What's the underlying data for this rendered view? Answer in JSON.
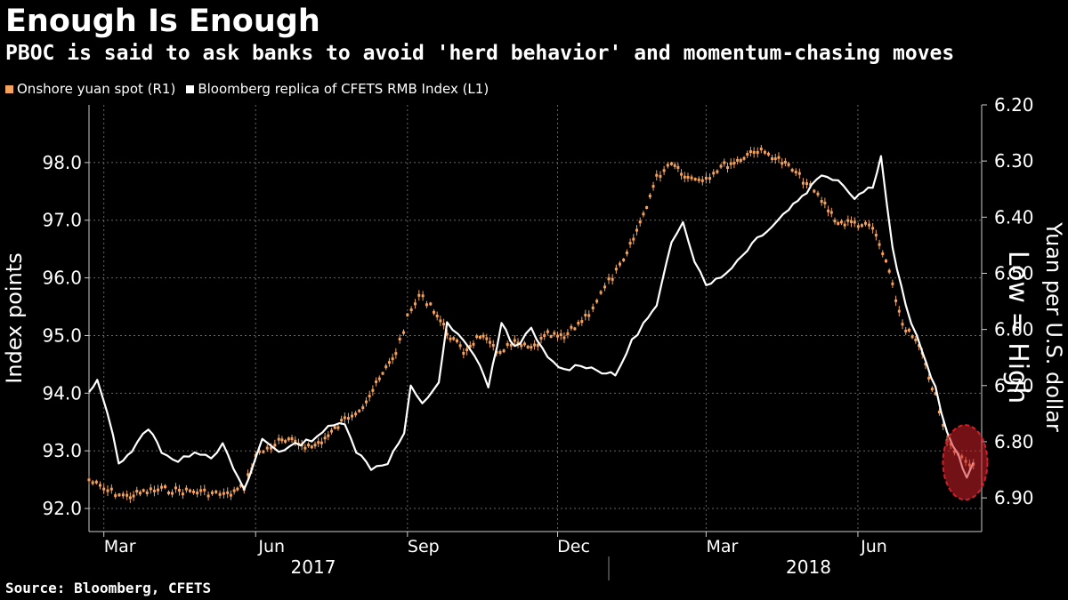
{
  "header": {
    "title": "Enough Is Enough",
    "subtitle": "PBOC is said to ask banks to avoid 'herd behavior' and momentum-chasing moves"
  },
  "footer": {
    "source": "Source: Bloomberg, CFETS"
  },
  "colors": {
    "yuan": "#f5a25d",
    "cfets": "#ffffff",
    "grid": "#666666",
    "highlight": "#d0202a"
  },
  "chart_data": {
    "type": "line",
    "title": "Enough Is Enough",
    "subtitle": "PBOC is said to ask banks to avoid 'herd behavior' and momentum-chasing moves",
    "ylabel_left": "Index points",
    "ylabel_right": "Yuan per U.S. dollar",
    "right_axis_note": "Low = High",
    "yleft_ticks": [
      "98.0",
      "97.0",
      "96.0",
      "95.0",
      "94.0",
      "93.0",
      "92.0"
    ],
    "yleft_range": [
      91.6,
      99.0
    ],
    "yright_ticks": [
      "6.20",
      "6.30",
      "6.40",
      "6.50",
      "6.60",
      "6.70",
      "6.80",
      "6.90"
    ],
    "yright_range": [
      6.2,
      6.96
    ],
    "yright_inverted": true,
    "x_ticks": [
      "Mar",
      "Jun",
      "Sep",
      "Dec",
      "Mar",
      "Jun"
    ],
    "x_years": [
      "2017",
      "2018"
    ],
    "x_range": [
      "2017-02-20",
      "2018-08-15"
    ],
    "series": [
      {
        "name": "Onshore yuan spot (R1)",
        "axis": "right",
        "style": "candlestick",
        "points": [
          [
            "2017-02-20",
            6.868
          ],
          [
            "2017-03-01",
            6.885
          ],
          [
            "2017-03-15",
            6.898
          ],
          [
            "2017-03-25",
            6.89
          ],
          [
            "2017-04-05",
            6.885
          ],
          [
            "2017-04-20",
            6.888
          ],
          [
            "2017-05-01",
            6.89
          ],
          [
            "2017-05-15",
            6.895
          ],
          [
            "2017-05-25",
            6.88
          ],
          [
            "2017-06-01",
            6.825
          ],
          [
            "2017-06-15",
            6.8
          ],
          [
            "2017-06-25",
            6.8
          ],
          [
            "2017-07-05",
            6.81
          ],
          [
            "2017-07-15",
            6.79
          ],
          [
            "2017-07-25",
            6.76
          ],
          [
            "2017-08-05",
            6.735
          ],
          [
            "2017-08-15",
            6.69
          ],
          [
            "2017-08-25",
            6.64
          ],
          [
            "2017-09-01",
            6.58
          ],
          [
            "2017-09-08",
            6.54
          ],
          [
            "2017-09-15",
            6.555
          ],
          [
            "2017-09-25",
            6.605
          ],
          [
            "2017-10-05",
            6.64
          ],
          [
            "2017-10-15",
            6.61
          ],
          [
            "2017-10-25",
            6.64
          ],
          [
            "2017-11-05",
            6.625
          ],
          [
            "2017-11-15",
            6.635
          ],
          [
            "2017-11-25",
            6.61
          ],
          [
            "2017-12-05",
            6.615
          ],
          [
            "2017-12-20",
            6.57
          ],
          [
            "2018-01-01",
            6.515
          ],
          [
            "2018-01-10",
            6.48
          ],
          [
            "2018-01-20",
            6.41
          ],
          [
            "2018-01-30",
            6.33
          ],
          [
            "2018-02-08",
            6.3
          ],
          [
            "2018-02-18",
            6.33
          ],
          [
            "2018-03-01",
            6.33
          ],
          [
            "2018-03-10",
            6.31
          ],
          [
            "2018-03-20",
            6.3
          ],
          [
            "2018-03-30",
            6.28
          ],
          [
            "2018-04-10",
            6.29
          ],
          [
            "2018-04-20",
            6.31
          ],
          [
            "2018-05-01",
            6.34
          ],
          [
            "2018-05-10",
            6.37
          ],
          [
            "2018-05-20",
            6.41
          ],
          [
            "2018-05-30",
            6.41
          ],
          [
            "2018-06-10",
            6.42
          ],
          [
            "2018-06-18",
            6.48
          ],
          [
            "2018-06-28",
            6.59
          ],
          [
            "2018-07-08",
            6.63
          ],
          [
            "2018-07-18",
            6.72
          ],
          [
            "2018-07-25",
            6.8
          ],
          [
            "2018-08-03",
            6.83
          ],
          [
            "2018-08-10",
            6.84
          ]
        ]
      },
      {
        "name": "Bloomberg replica of CFETS RMB Index (L1)",
        "axis": "left",
        "style": "line",
        "points": [
          [
            "2017-02-20",
            94.0
          ],
          [
            "2017-02-25",
            94.2
          ],
          [
            "2017-03-03",
            93.7
          ],
          [
            "2017-03-10",
            92.8
          ],
          [
            "2017-03-18",
            93.0
          ],
          [
            "2017-03-28",
            93.4
          ],
          [
            "2017-04-05",
            93.0
          ],
          [
            "2017-04-15",
            92.8
          ],
          [
            "2017-04-25",
            93.0
          ],
          [
            "2017-05-05",
            92.9
          ],
          [
            "2017-05-12",
            93.1
          ],
          [
            "2017-05-25",
            92.3
          ],
          [
            "2017-06-05",
            93.2
          ],
          [
            "2017-06-15",
            93.0
          ],
          [
            "2017-06-25",
            93.1
          ],
          [
            "2017-07-05",
            93.2
          ],
          [
            "2017-07-15",
            93.4
          ],
          [
            "2017-07-25",
            93.5
          ],
          [
            "2017-08-01",
            93.0
          ],
          [
            "2017-08-10",
            92.7
          ],
          [
            "2017-08-20",
            92.8
          ],
          [
            "2017-08-30",
            93.3
          ],
          [
            "2017-09-03",
            94.1
          ],
          [
            "2017-09-10",
            93.8
          ],
          [
            "2017-09-20",
            94.2
          ],
          [
            "2017-09-25",
            95.2
          ],
          [
            "2017-10-05",
            94.9
          ],
          [
            "2017-10-15",
            94.5
          ],
          [
            "2017-10-20",
            94.1
          ],
          [
            "2017-10-28",
            95.2
          ],
          [
            "2017-11-05",
            94.8
          ],
          [
            "2017-11-15",
            95.1
          ],
          [
            "2017-11-25",
            94.6
          ],
          [
            "2017-12-05",
            94.4
          ],
          [
            "2017-12-15",
            94.5
          ],
          [
            "2017-12-25",
            94.4
          ],
          [
            "2018-01-05",
            94.3
          ],
          [
            "2018-01-15",
            94.9
          ],
          [
            "2018-01-22",
            95.2
          ],
          [
            "2018-01-30",
            95.5
          ],
          [
            "2018-02-08",
            96.6
          ],
          [
            "2018-02-15",
            97.0
          ],
          [
            "2018-02-22",
            96.3
          ],
          [
            "2018-03-01",
            95.9
          ],
          [
            "2018-03-10",
            96.0
          ],
          [
            "2018-03-20",
            96.3
          ],
          [
            "2018-04-01",
            96.7
          ],
          [
            "2018-04-10",
            96.9
          ],
          [
            "2018-04-20",
            97.2
          ],
          [
            "2018-05-01",
            97.5
          ],
          [
            "2018-05-10",
            97.8
          ],
          [
            "2018-05-20",
            97.7
          ],
          [
            "2018-05-30",
            97.4
          ],
          [
            "2018-06-10",
            97.6
          ],
          [
            "2018-06-15",
            98.1
          ],
          [
            "2018-06-22",
            96.5
          ],
          [
            "2018-06-30",
            95.5
          ],
          [
            "2018-07-10",
            94.7
          ],
          [
            "2018-07-18",
            94.1
          ],
          [
            "2018-07-25",
            93.3
          ],
          [
            "2018-08-01",
            92.9
          ],
          [
            "2018-08-06",
            92.5
          ],
          [
            "2018-08-10",
            92.8
          ]
        ]
      }
    ],
    "legend": [
      "Onshore yuan spot (R1)",
      "Bloomberg replica of CFETS RMB Index (L1)"
    ],
    "legend_position": "top-left",
    "grid": true
  }
}
